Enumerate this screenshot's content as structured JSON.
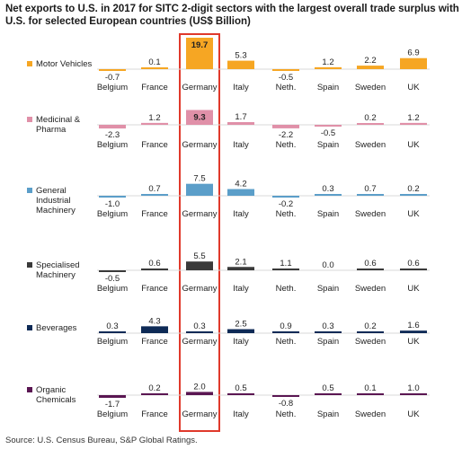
{
  "title": "Net exports to U.S. in 2017 for SITC 2-digit sectors with the largest overall trade surplus with U.S. for selected European countries (US$ Billion)",
  "source": "Source: U.S. Census Bureau, S&P Global Ratings.",
  "colors": {
    "Motor Vehicles": "#f6a623",
    "Medicinal & Pharma": "#e090a8",
    "General Industrial Machinery": "#5b9ec9",
    "Specialised Machinery": "#3a3a3a",
    "Beverages": "#0e2a56",
    "Organic Chemicals": "#5a1652",
    "highlight": "#e0392b"
  },
  "chart_data": {
    "type": "bar",
    "categories": [
      "Belgium",
      "France",
      "Germany",
      "Italy",
      "Neth.",
      "Spain",
      "Sweden",
      "UK"
    ],
    "highlighted_category": "Germany",
    "series": [
      {
        "name": "Motor Vehicles",
        "label_lines": [
          "Motor Vehicles"
        ],
        "values": [
          -0.7,
          0.1,
          19.7,
          5.3,
          -0.5,
          1.2,
          2.2,
          6.9
        ],
        "value_labels": [
          "-0.7",
          "0.1",
          "19.7",
          "5.3",
          "-0.5",
          "1.2",
          "2.2",
          "6.9"
        ]
      },
      {
        "name": "Medicinal & Pharma",
        "label_lines": [
          "Medicinal &",
          "Pharma"
        ],
        "values": [
          -2.3,
          1.2,
          9.3,
          1.7,
          -2.2,
          -0.5,
          0.2,
          1.2
        ],
        "value_labels": [
          "-2.3",
          "1.2",
          "9.3",
          "1.7",
          "-2.2",
          "-0.5",
          "0.2",
          "1.2"
        ]
      },
      {
        "name": "General Industrial Machinery",
        "label_lines": [
          "General",
          "Industrial",
          "Machinery"
        ],
        "values": [
          -1.0,
          0.7,
          7.5,
          4.2,
          -0.2,
          0.3,
          0.7,
          0.2
        ],
        "value_labels": [
          "-1.0",
          "0.7",
          "7.5",
          "4.2",
          "-0.2",
          "0.3",
          "0.7",
          "0.2"
        ]
      },
      {
        "name": "Specialised Machinery",
        "label_lines": [
          "Specialised",
          "Machinery"
        ],
        "values": [
          -0.5,
          0.6,
          5.5,
          2.1,
          1.1,
          0.0,
          0.6,
          0.6
        ],
        "value_labels": [
          "-0.5",
          "0.6",
          "5.5",
          "2.1",
          "1.1",
          "0.0",
          "0.6",
          "0.6"
        ]
      },
      {
        "name": "Beverages",
        "label_lines": [
          "Beverages"
        ],
        "values": [
          0.3,
          4.3,
          0.3,
          2.5,
          0.9,
          0.3,
          0.2,
          1.6
        ],
        "value_labels": [
          "0.3",
          "4.3",
          "0.3",
          "2.5",
          "0.9",
          "0.3",
          "0.2",
          "1.6"
        ]
      },
      {
        "name": "Organic Chemicals",
        "label_lines": [
          "Organic",
          "Chemicals"
        ],
        "values": [
          -1.7,
          0.2,
          2.0,
          0.5,
          -0.8,
          0.5,
          0.1,
          1.0
        ],
        "value_labels": [
          "-1.7",
          "0.2",
          "2.0",
          "0.5",
          "-0.8",
          "0.5",
          "0.1",
          "1.0"
        ]
      }
    ]
  }
}
